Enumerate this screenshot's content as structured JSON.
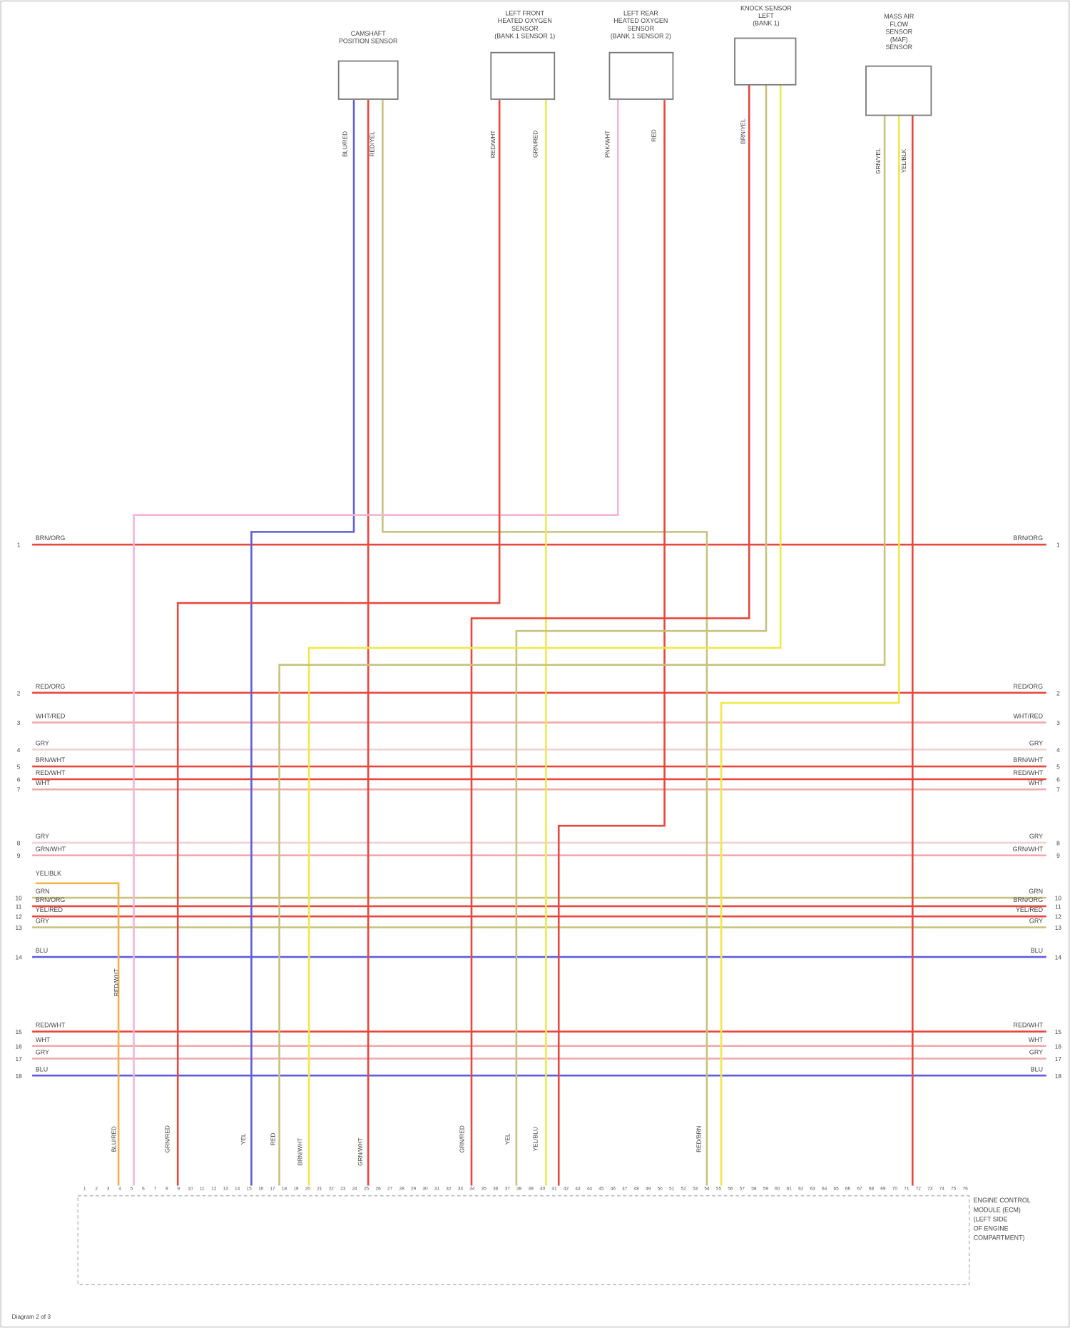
{
  "components": [
    {
      "label": [
        "CAMSHAFT",
        "POSITION SENSOR"
      ]
    },
    {
      "label": [
        "LEFT FRONT",
        "HEATED OXYGEN",
        "SENSOR",
        "(BANK 1 SENSOR 1)"
      ]
    },
    {
      "label": [
        "LEFT REAR",
        "HEATED OXYGEN",
        "SENSOR",
        "(BANK 1 SENSOR 2)"
      ]
    },
    {
      "label": [
        "KNOCK SENSOR",
        "LEFT",
        "(BANK 1)"
      ]
    },
    {
      "label": [
        "MASS AIR",
        "FLOW",
        "SENSOR",
        "(MAF)",
        "SENSOR"
      ]
    }
  ],
  "buses": [
    {
      "number": "1",
      "label": "BRN/ORG"
    },
    {
      "number": "2",
      "label": "RED/ORG"
    },
    {
      "number": "3",
      "label": "WHT/RED"
    },
    {
      "number": "4",
      "label": "GRY"
    },
    {
      "number": "5",
      "label": "BRN/WHT"
    },
    {
      "number": "6",
      "label": "RED/WHT"
    },
    {
      "number": "7",
      "label": "WHT"
    },
    {
      "number": "8",
      "label": "GRY"
    },
    {
      "number": "9",
      "label": "GRN/WHT"
    },
    {
      "number": "10",
      "label": "GRN"
    },
    {
      "number": "11",
      "label": "BRN/ORG"
    },
    {
      "number": "12",
      "label": "YEL/RED"
    },
    {
      "number": "13",
      "label": "GRY"
    },
    {
      "number": "14",
      "label": "BLU"
    },
    {
      "number": "15",
      "label": "RED/WHT"
    },
    {
      "number": "16",
      "label": "WHT"
    },
    {
      "number": "17",
      "label": "GRY"
    },
    {
      "number": "18",
      "label": "BLU"
    }
  ],
  "side_label": "YEL/BLK",
  "wire_labels": [
    "BLU/RED",
    "RED/YEL",
    "RED/WHT",
    "GRN/RED",
    "PNK/WHT",
    "RED",
    "BRN/YEL",
    "GRN/YEL",
    "YEL/BLK",
    "RED/WHT",
    "BLU/RED",
    "GRN/RED",
    "YEL",
    "RED",
    "BRN/WHT",
    "GRN/WHT",
    "GRN/RED",
    "YEL",
    "YEL/BLU",
    "RED/BRN"
  ],
  "pins": [
    "1",
    "2",
    "3",
    "4",
    "5",
    "6",
    "7",
    "8",
    "9",
    "10",
    "11",
    "12",
    "13",
    "14",
    "15",
    "16",
    "17",
    "18",
    "19",
    "20",
    "21",
    "22",
    "23",
    "24",
    "25",
    "26",
    "27",
    "28",
    "29",
    "30",
    "31",
    "32",
    "33",
    "34",
    "35",
    "36",
    "37",
    "38",
    "39",
    "40",
    "41",
    "42",
    "43",
    "44",
    "45",
    "46",
    "47",
    "48",
    "49",
    "50",
    "51",
    "52",
    "53",
    "54",
    "55",
    "56",
    "57",
    "58",
    "59",
    "60",
    "61",
    "62",
    "63",
    "64",
    "65",
    "66",
    "67",
    "68",
    "69",
    "70",
    "71",
    "72",
    "73",
    "74",
    "75",
    "76"
  ],
  "ecm": {
    "label": [
      "ENGINE CONTROL",
      "MODULE (ECM)",
      "(LEFT SIDE",
      "OF ENGINE",
      "COMPARTMENT)"
    ]
  },
  "footer": "Diagram 2 of 3"
}
